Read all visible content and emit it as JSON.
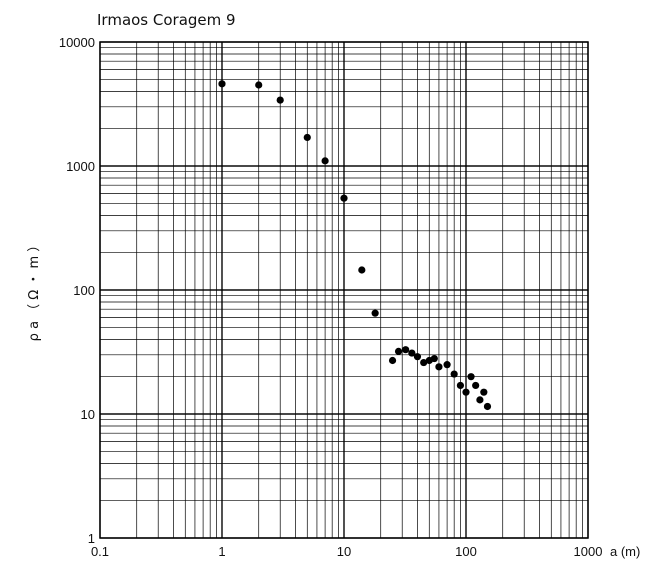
{
  "chart_data": {
    "type": "scatter",
    "title": "Irmaos Coragem 9",
    "xlabel": "a (m)",
    "ylabel": "ρ a  （ Ω ・ m ）",
    "x_scale": "log",
    "y_scale": "log",
    "xlim": [
      0.1,
      1000
    ],
    "ylim": [
      1,
      10000
    ],
    "x_ticks": [
      "0.1",
      "1",
      "10",
      "100",
      "1000"
    ],
    "y_ticks": [
      "1",
      "10",
      "100",
      "1000",
      "10000"
    ],
    "grid": true,
    "legend": "none",
    "marker_color": "#000000",
    "points": [
      {
        "x": 1,
        "y": 4600
      },
      {
        "x": 2,
        "y": 4500
      },
      {
        "x": 3,
        "y": 3400
      },
      {
        "x": 5,
        "y": 1700
      },
      {
        "x": 7,
        "y": 1100
      },
      {
        "x": 10,
        "y": 550
      },
      {
        "x": 14,
        "y": 145
      },
      {
        "x": 18,
        "y": 65
      },
      {
        "x": 25,
        "y": 27
      },
      {
        "x": 28,
        "y": 32
      },
      {
        "x": 32,
        "y": 33
      },
      {
        "x": 36,
        "y": 31
      },
      {
        "x": 40,
        "y": 29
      },
      {
        "x": 45,
        "y": 26
      },
      {
        "x": 50,
        "y": 27
      },
      {
        "x": 55,
        "y": 28
      },
      {
        "x": 60,
        "y": 24
      },
      {
        "x": 70,
        "y": 25
      },
      {
        "x": 80,
        "y": 21
      },
      {
        "x": 90,
        "y": 17
      },
      {
        "x": 100,
        "y": 15
      },
      {
        "x": 110,
        "y": 20
      },
      {
        "x": 120,
        "y": 17
      },
      {
        "x": 130,
        "y": 13
      },
      {
        "x": 140,
        "y": 15
      },
      {
        "x": 150,
        "y": 11.5
      }
    ]
  }
}
